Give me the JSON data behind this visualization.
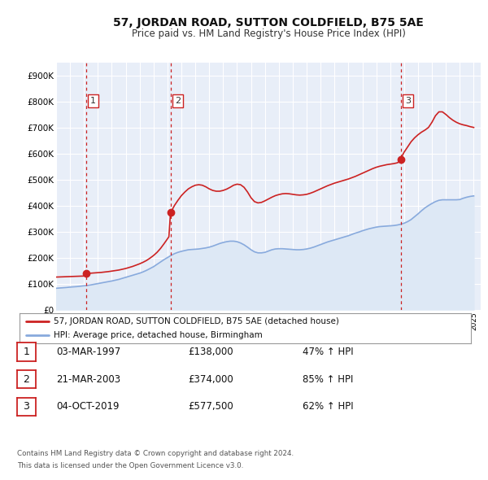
{
  "title": "57, JORDAN ROAD, SUTTON COLDFIELD, B75 5AE",
  "subtitle": "Price paid vs. HM Land Registry's House Price Index (HPI)",
  "legend_entry1": "57, JORDAN ROAD, SUTTON COLDFIELD, B75 5AE (detached house)",
  "legend_entry2": "HPI: Average price, detached house, Birmingham",
  "footer1": "Contains HM Land Registry data © Crown copyright and database right 2024.",
  "footer2": "This data is licensed under the Open Government Licence v3.0.",
  "transactions": [
    {
      "num": 1,
      "date": "03-MAR-1997",
      "price": 138000,
      "pct": "47%",
      "year": 1997.17
    },
    {
      "num": 2,
      "date": "21-MAR-2003",
      "price": 374000,
      "pct": "85%",
      "year": 2003.22
    },
    {
      "num": 3,
      "date": "04-OCT-2019",
      "price": 577500,
      "pct": "62%",
      "year": 2019.75
    }
  ],
  "vline_color": "#cc2222",
  "dot_color": "#cc2222",
  "price_line_color": "#cc2222",
  "hpi_line_color": "#88aadd",
  "hpi_fill_color": "#dde8f5",
  "chart_bg_color": "#e8eef8",
  "fig_bg_color": "#ffffff",
  "grid_color": "#ffffff",
  "xmin": 1995,
  "xmax": 2025.5,
  "ymin": 0,
  "ymax": 950000,
  "yticks": [
    0,
    100000,
    200000,
    300000,
    400000,
    500000,
    600000,
    700000,
    800000,
    900000
  ],
  "ytick_labels": [
    "£0",
    "£100K",
    "£200K",
    "£300K",
    "£400K",
    "£500K",
    "£600K",
    "£700K",
    "£800K",
    "£900K"
  ],
  "hpi_data": [
    [
      1995.0,
      82000
    ],
    [
      1995.25,
      83000
    ],
    [
      1995.5,
      84000
    ],
    [
      1995.75,
      85000
    ],
    [
      1996.0,
      86500
    ],
    [
      1996.25,
      87500
    ],
    [
      1996.5,
      88500
    ],
    [
      1996.75,
      90000
    ],
    [
      1997.0,
      91500
    ],
    [
      1997.25,
      93000
    ],
    [
      1997.5,
      95000
    ],
    [
      1997.75,
      97500
    ],
    [
      1998.0,
      100000
    ],
    [
      1998.25,
      102500
    ],
    [
      1998.5,
      105000
    ],
    [
      1998.75,
      107500
    ],
    [
      1999.0,
      110000
    ],
    [
      1999.25,
      113000
    ],
    [
      1999.5,
      116000
    ],
    [
      1999.75,
      120000
    ],
    [
      2000.0,
      124000
    ],
    [
      2000.25,
      128000
    ],
    [
      2000.5,
      132000
    ],
    [
      2000.75,
      136000
    ],
    [
      2001.0,
      140000
    ],
    [
      2001.25,
      145000
    ],
    [
      2001.5,
      151000
    ],
    [
      2001.75,
      158000
    ],
    [
      2002.0,
      165000
    ],
    [
      2002.25,
      174000
    ],
    [
      2002.5,
      183000
    ],
    [
      2002.75,
      192000
    ],
    [
      2003.0,
      200000
    ],
    [
      2003.25,
      208000
    ],
    [
      2003.5,
      215000
    ],
    [
      2003.75,
      220000
    ],
    [
      2004.0,
      224000
    ],
    [
      2004.25,
      227000
    ],
    [
      2004.5,
      230000
    ],
    [
      2004.75,
      231000
    ],
    [
      2005.0,
      232000
    ],
    [
      2005.25,
      233000
    ],
    [
      2005.5,
      235000
    ],
    [
      2005.75,
      237000
    ],
    [
      2006.0,
      240000
    ],
    [
      2006.25,
      244000
    ],
    [
      2006.5,
      249000
    ],
    [
      2006.75,
      254000
    ],
    [
      2007.0,
      258000
    ],
    [
      2007.25,
      261000
    ],
    [
      2007.5,
      263000
    ],
    [
      2007.75,
      263000
    ],
    [
      2008.0,
      261000
    ],
    [
      2008.25,
      256000
    ],
    [
      2008.5,
      249000
    ],
    [
      2008.75,
      240000
    ],
    [
      2009.0,
      230000
    ],
    [
      2009.25,
      222000
    ],
    [
      2009.5,
      218000
    ],
    [
      2009.75,
      218000
    ],
    [
      2010.0,
      220000
    ],
    [
      2010.25,
      225000
    ],
    [
      2010.5,
      230000
    ],
    [
      2010.75,
      233000
    ],
    [
      2011.0,
      234000
    ],
    [
      2011.25,
      234000
    ],
    [
      2011.5,
      233000
    ],
    [
      2011.75,
      232000
    ],
    [
      2012.0,
      231000
    ],
    [
      2012.25,
      230000
    ],
    [
      2012.5,
      230000
    ],
    [
      2012.75,
      231000
    ],
    [
      2013.0,
      233000
    ],
    [
      2013.25,
      236000
    ],
    [
      2013.5,
      240000
    ],
    [
      2013.75,
      245000
    ],
    [
      2014.0,
      250000
    ],
    [
      2014.25,
      255000
    ],
    [
      2014.5,
      260000
    ],
    [
      2014.75,
      264000
    ],
    [
      2015.0,
      268000
    ],
    [
      2015.25,
      272000
    ],
    [
      2015.5,
      276000
    ],
    [
      2015.75,
      280000
    ],
    [
      2016.0,
      284000
    ],
    [
      2016.25,
      289000
    ],
    [
      2016.5,
      294000
    ],
    [
      2016.75,
      298000
    ],
    [
      2017.0,
      303000
    ],
    [
      2017.25,
      307000
    ],
    [
      2017.5,
      311000
    ],
    [
      2017.75,
      314000
    ],
    [
      2018.0,
      317000
    ],
    [
      2018.25,
      319000
    ],
    [
      2018.5,
      320000
    ],
    [
      2018.75,
      321000
    ],
    [
      2019.0,
      322000
    ],
    [
      2019.25,
      323000
    ],
    [
      2019.5,
      325000
    ],
    [
      2019.75,
      328000
    ],
    [
      2020.0,
      332000
    ],
    [
      2020.25,
      338000
    ],
    [
      2020.5,
      346000
    ],
    [
      2020.75,
      357000
    ],
    [
      2021.0,
      368000
    ],
    [
      2021.25,
      380000
    ],
    [
      2021.5,
      391000
    ],
    [
      2021.75,
      400000
    ],
    [
      2022.0,
      408000
    ],
    [
      2022.25,
      415000
    ],
    [
      2022.5,
      420000
    ],
    [
      2022.75,
      422000
    ],
    [
      2023.0,
      422000
    ],
    [
      2023.25,
      422000
    ],
    [
      2023.5,
      422000
    ],
    [
      2023.75,
      422000
    ],
    [
      2024.0,
      423000
    ],
    [
      2024.25,
      428000
    ],
    [
      2024.5,
      432000
    ],
    [
      2024.75,
      435000
    ],
    [
      2025.0,
      437000
    ]
  ],
  "price_data": [
    [
      1995.0,
      125000
    ],
    [
      1995.5,
      126000
    ],
    [
      1996.0,
      127000
    ],
    [
      1996.5,
      128000
    ],
    [
      1997.0,
      129000
    ],
    [
      1997.1,
      130000
    ],
    [
      1997.17,
      138000
    ],
    [
      1997.3,
      139000
    ],
    [
      1997.5,
      140000
    ],
    [
      1997.75,
      141000
    ],
    [
      1998.0,
      142000
    ],
    [
      1998.25,
      143000
    ],
    [
      1998.5,
      144500
    ],
    [
      1998.75,
      146000
    ],
    [
      1999.0,
      148000
    ],
    [
      1999.25,
      150000
    ],
    [
      1999.5,
      152000
    ],
    [
      1999.75,
      155000
    ],
    [
      2000.0,
      158000
    ],
    [
      2000.25,
      162000
    ],
    [
      2000.5,
      166000
    ],
    [
      2000.75,
      171000
    ],
    [
      2001.0,
      176000
    ],
    [
      2001.25,
      182000
    ],
    [
      2001.5,
      189000
    ],
    [
      2001.75,
      198000
    ],
    [
      2002.0,
      208000
    ],
    [
      2002.25,
      220000
    ],
    [
      2002.5,
      235000
    ],
    [
      2002.75,
      253000
    ],
    [
      2003.0,
      272000
    ],
    [
      2003.1,
      280000
    ],
    [
      2003.22,
      374000
    ],
    [
      2003.35,
      385000
    ],
    [
      2003.5,
      400000
    ],
    [
      2003.75,
      420000
    ],
    [
      2004.0,
      438000
    ],
    [
      2004.25,
      452000
    ],
    [
      2004.5,
      464000
    ],
    [
      2004.75,
      472000
    ],
    [
      2005.0,
      478000
    ],
    [
      2005.25,
      480000
    ],
    [
      2005.5,
      478000
    ],
    [
      2005.75,
      472000
    ],
    [
      2006.0,
      464000
    ],
    [
      2006.25,
      458000
    ],
    [
      2006.5,
      455000
    ],
    [
      2006.75,
      455000
    ],
    [
      2007.0,
      458000
    ],
    [
      2007.25,
      463000
    ],
    [
      2007.5,
      470000
    ],
    [
      2007.75,
      478000
    ],
    [
      2008.0,
      482000
    ],
    [
      2008.25,
      480000
    ],
    [
      2008.5,
      470000
    ],
    [
      2008.75,
      452000
    ],
    [
      2009.0,
      430000
    ],
    [
      2009.25,
      415000
    ],
    [
      2009.5,
      410000
    ],
    [
      2009.75,
      412000
    ],
    [
      2010.0,
      418000
    ],
    [
      2010.25,
      425000
    ],
    [
      2010.5,
      432000
    ],
    [
      2010.75,
      438000
    ],
    [
      2011.0,
      442000
    ],
    [
      2011.25,
      445000
    ],
    [
      2011.5,
      446000
    ],
    [
      2011.75,
      445000
    ],
    [
      2012.0,
      443000
    ],
    [
      2012.25,
      441000
    ],
    [
      2012.5,
      440000
    ],
    [
      2012.75,
      441000
    ],
    [
      2013.0,
      443000
    ],
    [
      2013.25,
      447000
    ],
    [
      2013.5,
      452000
    ],
    [
      2013.75,
      458000
    ],
    [
      2014.0,
      464000
    ],
    [
      2014.25,
      470000
    ],
    [
      2014.5,
      476000
    ],
    [
      2014.75,
      481000
    ],
    [
      2015.0,
      486000
    ],
    [
      2015.25,
      490000
    ],
    [
      2015.5,
      494000
    ],
    [
      2015.75,
      498000
    ],
    [
      2016.0,
      502000
    ],
    [
      2016.25,
      507000
    ],
    [
      2016.5,
      512000
    ],
    [
      2016.75,
      518000
    ],
    [
      2017.0,
      524000
    ],
    [
      2017.25,
      530000
    ],
    [
      2017.5,
      536000
    ],
    [
      2017.75,
      542000
    ],
    [
      2018.0,
      547000
    ],
    [
      2018.25,
      551000
    ],
    [
      2018.5,
      554000
    ],
    [
      2018.75,
      557000
    ],
    [
      2019.0,
      559000
    ],
    [
      2019.25,
      561000
    ],
    [
      2019.5,
      564000
    ],
    [
      2019.65,
      568000
    ],
    [
      2019.75,
      577500
    ],
    [
      2019.85,
      590000
    ],
    [
      2020.0,
      605000
    ],
    [
      2020.25,
      625000
    ],
    [
      2020.5,
      645000
    ],
    [
      2020.75,
      660000
    ],
    [
      2021.0,
      672000
    ],
    [
      2021.25,
      682000
    ],
    [
      2021.5,
      690000
    ],
    [
      2021.75,
      700000
    ],
    [
      2022.0,
      720000
    ],
    [
      2022.25,
      745000
    ],
    [
      2022.5,
      760000
    ],
    [
      2022.75,
      760000
    ],
    [
      2023.0,
      750000
    ],
    [
      2023.25,
      738000
    ],
    [
      2023.5,
      728000
    ],
    [
      2023.75,
      720000
    ],
    [
      2024.0,
      714000
    ],
    [
      2024.25,
      710000
    ],
    [
      2024.5,
      707000
    ],
    [
      2024.75,
      703000
    ],
    [
      2025.0,
      700000
    ]
  ]
}
